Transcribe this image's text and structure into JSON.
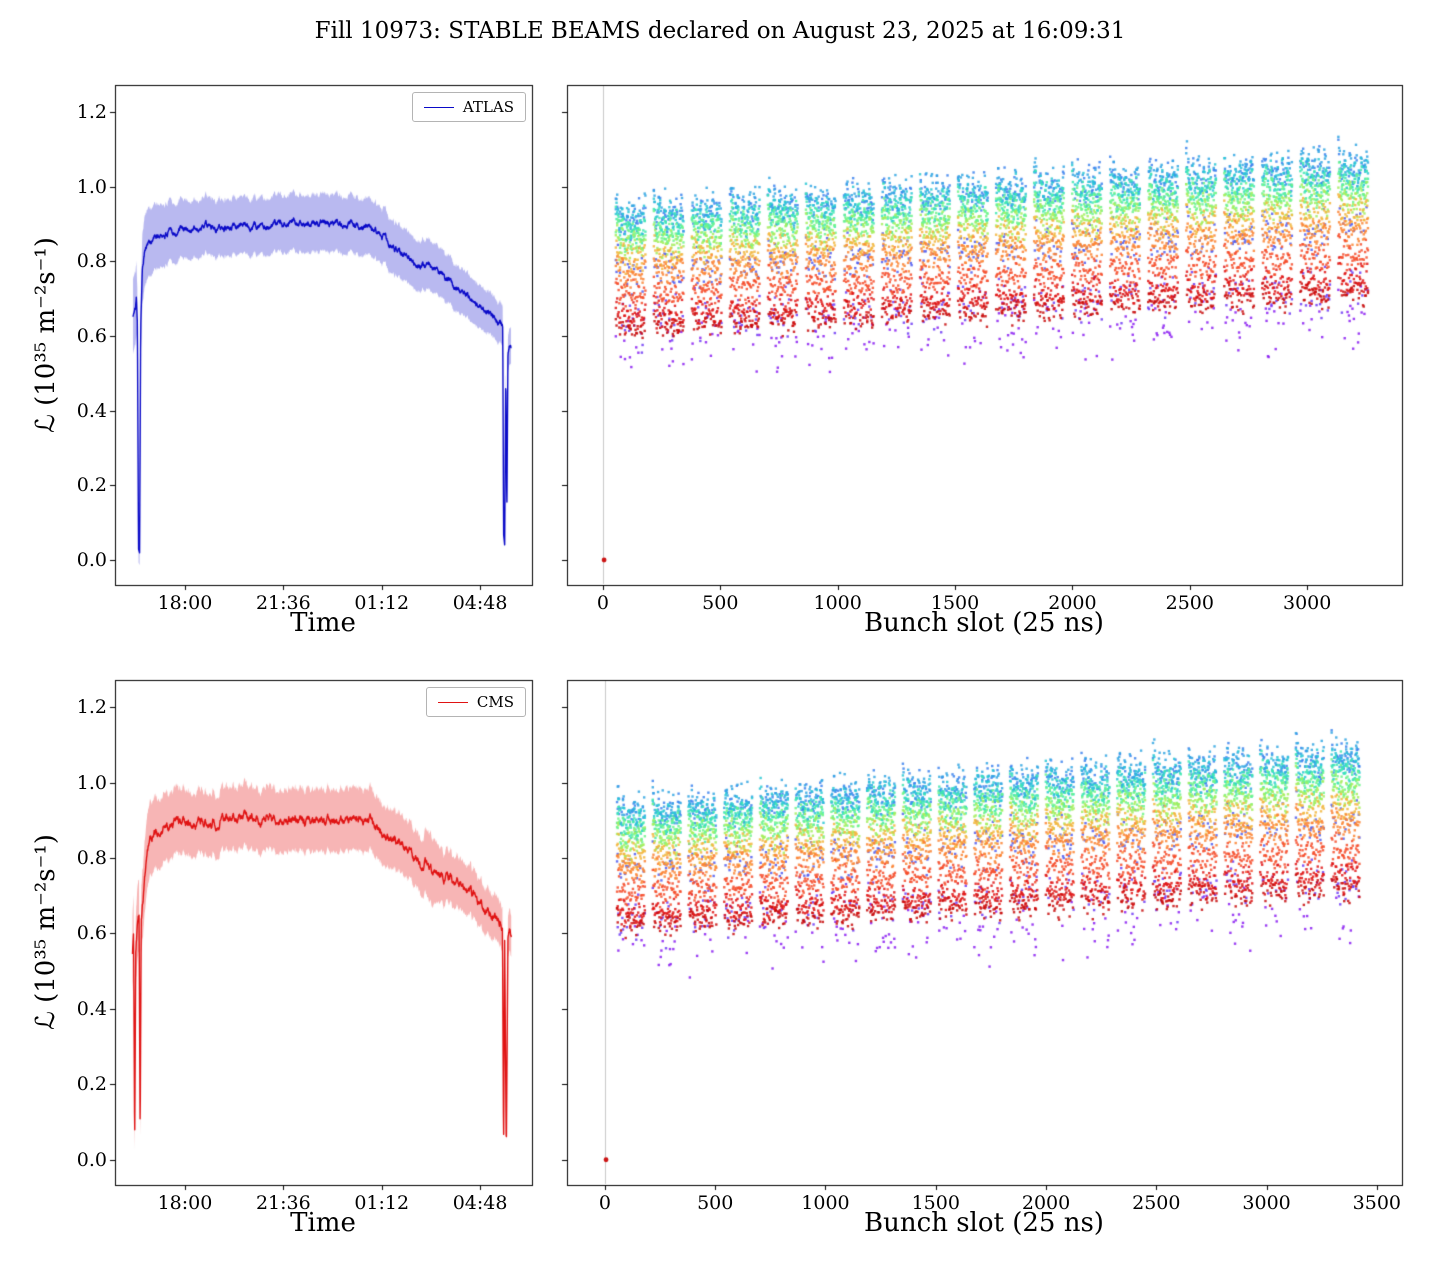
{
  "title": "Fill 10973: STABLE BEAMS declared on August 23, 2025 at 16:09:31",
  "chart_data": [
    {
      "id": "atlas_luminosity_vs_time",
      "type": "line",
      "xlabel": "Time",
      "ylabel": "ℒ (10³⁵ m⁻²s⁻¹)",
      "legend": [
        "ATLAS"
      ],
      "legend_position": "upper right",
      "xlim": [
        15.44,
        30.7
      ],
      "ylim": [
        -0.067,
        1.272
      ],
      "x_ticks": [
        {
          "value": 18.0,
          "label": "18:00"
        },
        {
          "value": 21.6,
          "label": "21:36"
        },
        {
          "value": 25.2,
          "label": "01:12"
        },
        {
          "value": 28.8,
          "label": "04:48"
        }
      ],
      "y_ticks": [
        {
          "value": 0.0,
          "label": "0.0"
        },
        {
          "value": 0.2,
          "label": "0.2"
        },
        {
          "value": 0.4,
          "label": "0.4"
        },
        {
          "value": 0.6,
          "label": "0.6"
        },
        {
          "value": 0.8,
          "label": "0.8"
        },
        {
          "value": 1.0,
          "label": "1.0"
        },
        {
          "value": 1.2,
          "label": "1.2"
        }
      ],
      "series": [
        {
          "name": "ATLAS",
          "color": "#0a0ac8",
          "band_color": "rgba(70,70,215,0.38)",
          "band_frac": 0.085,
          "band_early": 0.045,
          "noise": 0.01,
          "points": [
            [
              16.1,
              0.655
            ],
            [
              16.18,
              0.67
            ],
            [
              16.22,
              0.7
            ],
            [
              16.26,
              0.64
            ],
            [
              16.3,
              0.03
            ],
            [
              16.34,
              0.02
            ],
            [
              16.38,
              0.62
            ],
            [
              16.44,
              0.79
            ],
            [
              16.52,
              0.835
            ],
            [
              16.65,
              0.85
            ],
            [
              16.9,
              0.862
            ],
            [
              17.3,
              0.872
            ],
            [
              17.8,
              0.882
            ],
            [
              18.3,
              0.888
            ],
            [
              19.0,
              0.894
            ],
            [
              20.0,
              0.898
            ],
            [
              21.0,
              0.9
            ],
            [
              22.0,
              0.9
            ],
            [
              23.0,
              0.899
            ],
            [
              24.0,
              0.898
            ],
            [
              24.55,
              0.897
            ],
            [
              24.75,
              0.892
            ],
            [
              25.0,
              0.875
            ],
            [
              25.35,
              0.855
            ],
            [
              25.7,
              0.836
            ],
            [
              26.1,
              0.816
            ],
            [
              26.45,
              0.8
            ],
            [
              26.8,
              0.786
            ],
            [
              27.2,
              0.77
            ],
            [
              27.6,
              0.749
            ],
            [
              28.1,
              0.722
            ],
            [
              28.6,
              0.694
            ],
            [
              29.05,
              0.667
            ],
            [
              29.35,
              0.649
            ],
            [
              29.55,
              0.636
            ],
            [
              29.63,
              0.63
            ],
            [
              29.66,
              0.07
            ],
            [
              29.7,
              0.04
            ],
            [
              29.74,
              0.5
            ],
            [
              29.78,
              0.13
            ],
            [
              29.82,
              0.555
            ],
            [
              29.87,
              0.575
            ],
            [
              29.93,
              0.565
            ]
          ]
        }
      ]
    },
    {
      "id": "atlas_luminosity_vs_bunch_slot",
      "type": "scatter",
      "xlabel": "Bunch slot (25 ns)",
      "xlim": [
        -153,
        3404
      ],
      "ylim": [
        -0.067,
        1.272
      ],
      "x_ticks": [
        0,
        500,
        1000,
        1500,
        2000,
        2500,
        3000
      ],
      "y_ticks": [
        0.0,
        0.2,
        0.4,
        0.6,
        0.8,
        1.0,
        1.2
      ],
      "y_tick_labels": false,
      "colormap": "rainbow, early time = purple/blue, late time = red",
      "zero_slot_line_color": "#c9c9c9",
      "scatter_model": {
        "trains": 20,
        "first_slot": 55,
        "train_period": 162,
        "bunches_per_train": 43,
        "bunch_step": 3,
        "slot_trend": 0.16,
        "time_slices": [
          {
            "color": "#8a1cf2",
            "level": 0.575,
            "jitter": 0.095,
            "density": 0.22
          },
          {
            "color": "#6f3bf6",
            "level": 0.655,
            "jitter": 0.075,
            "density": 0.28
          },
          {
            "color": "#505cf0",
            "level": 0.79,
            "jitter": 0.06,
            "density": 0.45
          },
          {
            "color": "#3c82ee",
            "level": 0.935,
            "jitter": 0.05,
            "density": 0.7
          },
          {
            "color": "#30a6e3",
            "level": 0.945,
            "jitter": 0.045,
            "density": 0.75
          },
          {
            "color": "#28c8d5",
            "level": 0.925,
            "jitter": 0.04,
            "density": 0.8
          },
          {
            "color": "#3fe8b2",
            "level": 0.905,
            "jitter": 0.04,
            "density": 0.85
          },
          {
            "color": "#6df48b",
            "level": 0.885,
            "jitter": 0.035,
            "density": 0.95
          },
          {
            "color": "#a4ee5d",
            "level": 0.858,
            "jitter": 0.035,
            "density": 0.9
          },
          {
            "color": "#f2b63c",
            "level": 0.825,
            "jitter": 0.03,
            "density": 0.9
          },
          {
            "color": "#fb8433",
            "level": 0.785,
            "jitter": 0.03,
            "density": 1.0
          },
          {
            "color": "#f64c2a",
            "level": 0.725,
            "jitter": 0.032,
            "density": 1.0
          },
          {
            "color": "#e11414",
            "level": 0.665,
            "jitter": 0.035,
            "density": 1.0
          },
          {
            "color": "#c80b0b",
            "level": 0.635,
            "jitter": 0.03,
            "density": 0.6
          }
        ]
      },
      "outlier": {
        "x": 5,
        "y": 0.0,
        "color": "#cc1414"
      }
    },
    {
      "id": "cms_luminosity_vs_time",
      "type": "line",
      "xlabel": "Time",
      "ylabel": "ℒ (10³⁵ m⁻²s⁻¹)",
      "legend": [
        "CMS"
      ],
      "legend_position": "upper right",
      "xlim": [
        15.44,
        30.7
      ],
      "ylim": [
        -0.067,
        1.272
      ],
      "x_ticks": [
        {
          "value": 18.0,
          "label": "18:00"
        },
        {
          "value": 21.6,
          "label": "21:36"
        },
        {
          "value": 25.2,
          "label": "01:12"
        },
        {
          "value": 28.8,
          "label": "04:48"
        }
      ],
      "y_ticks": [
        {
          "value": 0.0,
          "label": "0.0"
        },
        {
          "value": 0.2,
          "label": "0.2"
        },
        {
          "value": 0.4,
          "label": "0.4"
        },
        {
          "value": 0.6,
          "label": "0.6"
        },
        {
          "value": 0.8,
          "label": "0.8"
        },
        {
          "value": 1.0,
          "label": "1.0"
        },
        {
          "value": 1.2,
          "label": "1.2"
        }
      ],
      "series": [
        {
          "name": "CMS",
          "color": "#e01313",
          "band_color": "rgba(235,60,60,0.38)",
          "band_frac": 0.092,
          "band_early": 0.05,
          "noise": 0.013,
          "band_bumps": [
            {
              "t": 27.0,
              "w": 0.25,
              "h": 0.02
            }
          ],
          "points": [
            [
              16.08,
              0.54
            ],
            [
              16.12,
              0.6
            ],
            [
              16.16,
              0.04
            ],
            [
              16.2,
              0.55
            ],
            [
              16.26,
              0.63
            ],
            [
              16.32,
              0.65
            ],
            [
              16.36,
              0.07
            ],
            [
              16.4,
              0.63
            ],
            [
              16.48,
              0.7
            ],
            [
              16.58,
              0.78
            ],
            [
              16.72,
              0.84
            ],
            [
              16.9,
              0.862
            ],
            [
              17.3,
              0.878
            ],
            [
              17.8,
              0.888
            ],
            [
              18.3,
              0.893
            ],
            [
              19.0,
              0.898
            ],
            [
              20.0,
              0.901
            ],
            [
              21.0,
              0.901
            ],
            [
              22.0,
              0.9
            ],
            [
              23.0,
              0.9
            ],
            [
              24.0,
              0.899
            ],
            [
              24.6,
              0.897
            ],
            [
              24.85,
              0.89
            ],
            [
              25.1,
              0.876
            ],
            [
              25.45,
              0.856
            ],
            [
              25.8,
              0.838
            ],
            [
              26.2,
              0.818
            ],
            [
              26.5,
              0.8
            ],
            [
              26.62,
              0.788
            ],
            [
              26.75,
              0.776
            ],
            [
              26.9,
              0.786
            ],
            [
              27.05,
              0.772
            ],
            [
              27.35,
              0.762
            ],
            [
              27.7,
              0.748
            ],
            [
              28.1,
              0.724
            ],
            [
              28.6,
              0.696
            ],
            [
              29.05,
              0.668
            ],
            [
              29.35,
              0.65
            ],
            [
              29.55,
              0.636
            ],
            [
              29.62,
              0.628
            ],
            [
              29.66,
              0.03
            ],
            [
              29.7,
              0.595
            ],
            [
              29.76,
              0.02
            ],
            [
              29.82,
              0.598
            ],
            [
              29.88,
              0.603
            ],
            [
              29.94,
              0.597
            ]
          ]
        }
      ]
    },
    {
      "id": "cms_luminosity_vs_bunch_slot",
      "type": "scatter",
      "xlabel": "Bunch slot (25 ns)",
      "xlim": [
        -172,
        3614
      ],
      "ylim": [
        -0.067,
        1.272
      ],
      "x_ticks": [
        0,
        500,
        1000,
        1500,
        2000,
        2500,
        3000,
        3500
      ],
      "y_ticks": [
        0.0,
        0.2,
        0.4,
        0.6,
        0.8,
        1.0,
        1.2
      ],
      "y_tick_labels": false,
      "colormap": "rainbow, early time = purple/blue, late time = red",
      "zero_slot_line_color": "#c9c9c9",
      "scatter_model": {
        "trains": 21,
        "first_slot": 55,
        "train_period": 162,
        "bunches_per_train": 43,
        "bunch_step": 3,
        "slot_trend": 0.16,
        "time_slices": [
          {
            "color": "#8a1cf2",
            "level": 0.575,
            "jitter": 0.095,
            "density": 0.22
          },
          {
            "color": "#6f3bf6",
            "level": 0.655,
            "jitter": 0.075,
            "density": 0.28
          },
          {
            "color": "#505cf0",
            "level": 0.79,
            "jitter": 0.06,
            "density": 0.45
          },
          {
            "color": "#3c82ee",
            "level": 0.935,
            "jitter": 0.05,
            "density": 0.7
          },
          {
            "color": "#30a6e3",
            "level": 0.945,
            "jitter": 0.045,
            "density": 0.75
          },
          {
            "color": "#28c8d5",
            "level": 0.925,
            "jitter": 0.04,
            "density": 0.8
          },
          {
            "color": "#3fe8b2",
            "level": 0.905,
            "jitter": 0.04,
            "density": 0.85
          },
          {
            "color": "#6df48b",
            "level": 0.885,
            "jitter": 0.035,
            "density": 0.95
          },
          {
            "color": "#a4ee5d",
            "level": 0.858,
            "jitter": 0.035,
            "density": 0.9
          },
          {
            "color": "#f2b63c",
            "level": 0.825,
            "jitter": 0.03,
            "density": 0.9
          },
          {
            "color": "#fb8433",
            "level": 0.785,
            "jitter": 0.03,
            "density": 1.0
          },
          {
            "color": "#f64c2a",
            "level": 0.725,
            "jitter": 0.032,
            "density": 1.0
          },
          {
            "color": "#e11414",
            "level": 0.665,
            "jitter": 0.035,
            "density": 1.0
          },
          {
            "color": "#c80b0b",
            "level": 0.635,
            "jitter": 0.03,
            "density": 0.6
          }
        ]
      },
      "outlier": {
        "x": 5,
        "y": 0.0,
        "color": "#cc1414"
      }
    }
  ]
}
